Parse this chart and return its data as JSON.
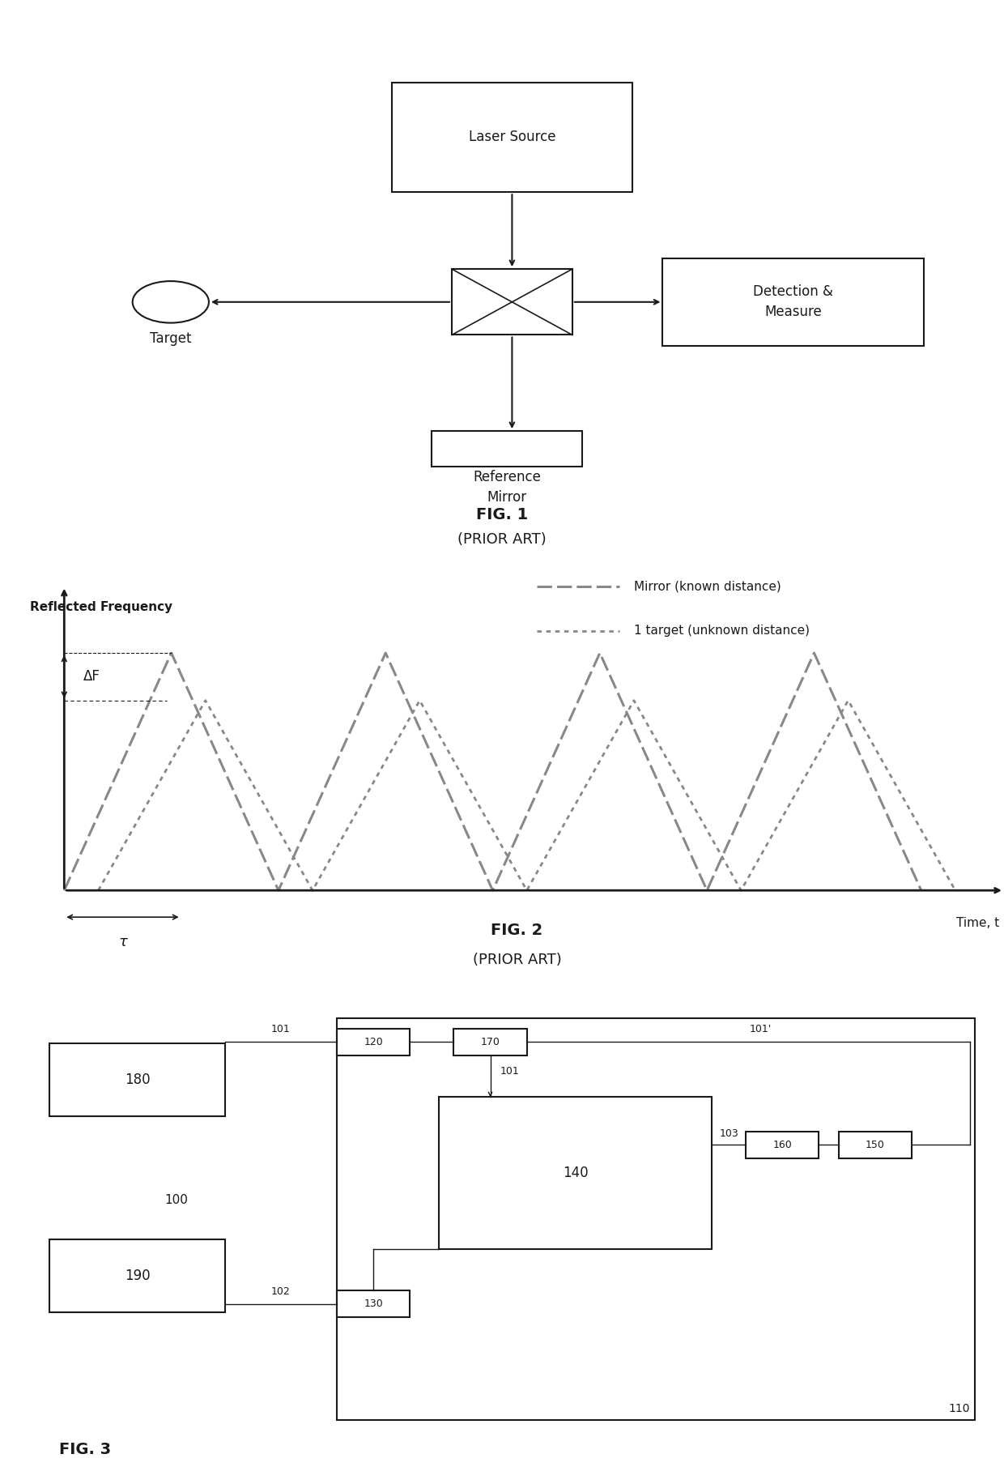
{
  "fig1": {
    "title": "FIG. 1",
    "subtitle": "(PRIOR ART)",
    "laser_source_label": "Laser Source",
    "detection_label": "Detection &\nMeasure",
    "reference_mirror_label": "Reference\nMirror",
    "target_label": "Target"
  },
  "fig2": {
    "title": "FIG. 2",
    "subtitle": "(PRIOR ART)",
    "ylabel": "Reflected Frequency",
    "xlabel": "Time, t",
    "tau_label": "τ",
    "delta_f_label": "ΔF",
    "mirror_legend": "Mirror (known distance)",
    "target_legend": "1 target (unknown distance)"
  },
  "fig3": {
    "title": "FIG. 3",
    "box_100": "100",
    "box_101": "101",
    "box_101p": "101'",
    "box_102": "102",
    "box_103": "103",
    "box_110": "110",
    "box_120": "120",
    "box_130": "130",
    "box_140": "140",
    "box_150": "150",
    "box_160": "160",
    "box_170": "170",
    "box_180": "180",
    "box_190": "190"
  },
  "bg_color": "#ffffff",
  "line_color": "#1a1a1a",
  "gray_color": "#888888"
}
